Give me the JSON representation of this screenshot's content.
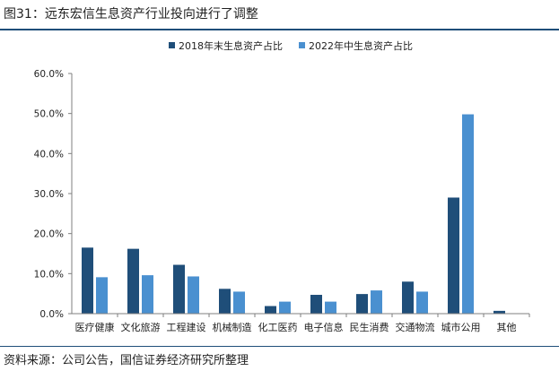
{
  "figure": {
    "title": "图31：远东宏信生息资产行业投向进行了调整",
    "source": "资料来源：公司公告，国信证券经济研究所整理"
  },
  "colors": {
    "series_2018": "#1f4e79",
    "series_2022": "#4a90d0",
    "axis": "#7f7f7f",
    "rule": "#1f4e79"
  },
  "chart_data": {
    "type": "bar",
    "categories": [
      "医疗健康",
      "文化旅游",
      "工程建设",
      "机械制造",
      "化工医药",
      "电子信息",
      "民生消费",
      "交通物流",
      "城市公用",
      "其他"
    ],
    "series": [
      {
        "name": "2018年末生息资产占比",
        "values": [
          16.5,
          16.2,
          12.2,
          6.2,
          1.9,
          4.7,
          4.9,
          8.0,
          29.0,
          0.7
        ]
      },
      {
        "name": "2022年中生息资产占比",
        "values": [
          9.1,
          9.6,
          9.3,
          5.5,
          3.0,
          3.0,
          5.8,
          5.5,
          49.8,
          0.0
        ]
      }
    ],
    "yticks": [
      "0.0%",
      "10.0%",
      "20.0%",
      "30.0%",
      "40.0%",
      "50.0%",
      "60.0%"
    ],
    "ylim": [
      0,
      60
    ],
    "legend": "top-center",
    "grid": false
  }
}
